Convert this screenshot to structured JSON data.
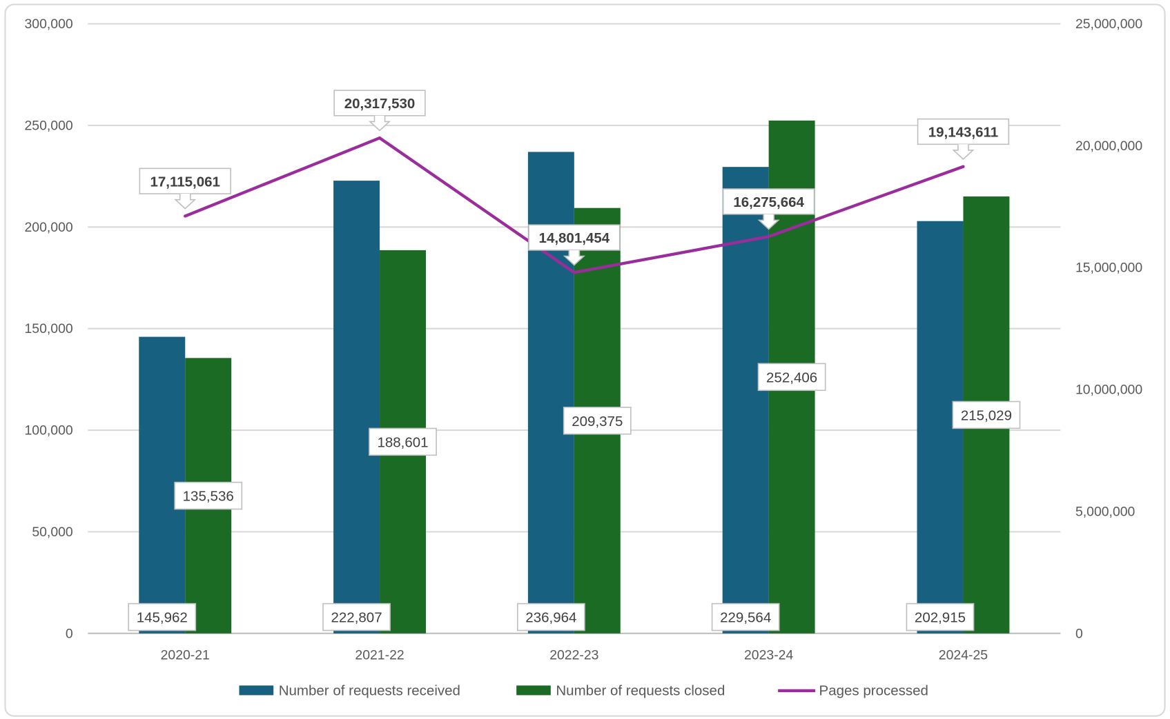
{
  "chart_data": {
    "type": "bar+line",
    "categories": [
      "2020-21",
      "2021-22",
      "2022-23",
      "2023-24",
      "2024-25"
    ],
    "series": [
      {
        "name": "Number of requests received",
        "type": "bar",
        "axis": "left",
        "color": "#17607F",
        "values": [
          145962,
          222807,
          236964,
          229564,
          202915
        ],
        "labels": [
          "145,962",
          "222,807",
          "236,964",
          "229,564",
          "202,915"
        ]
      },
      {
        "name": "Number of requests closed",
        "type": "bar",
        "axis": "left",
        "color": "#1B6B24",
        "values": [
          135536,
          188601,
          209375,
          252406,
          215029
        ],
        "labels": [
          "135,536",
          "188,601",
          "209,375",
          "252,406",
          "215,029"
        ]
      },
      {
        "name": "Pages processed",
        "type": "line",
        "axis": "right",
        "color": "#9B2C9B",
        "values": [
          17115061,
          20317530,
          14801454,
          16275664,
          19143611
        ],
        "labels": [
          "17,115,061",
          "20,317,530",
          "14,801,454",
          "16,275,664",
          "19,143,611"
        ]
      }
    ],
    "y_left": {
      "range": [
        0,
        300000
      ],
      "ticks": [
        "0",
        "50,000",
        "100,000",
        "150,000",
        "200,000",
        "250,000",
        "300,000"
      ]
    },
    "y_right": {
      "range": [
        0,
        25000000
      ],
      "ticks": [
        "0",
        "5,000,000",
        "10,000,000",
        "15,000,000",
        "20,000,000",
        "25,000,000"
      ]
    },
    "grid": true,
    "legend": "bottom"
  }
}
